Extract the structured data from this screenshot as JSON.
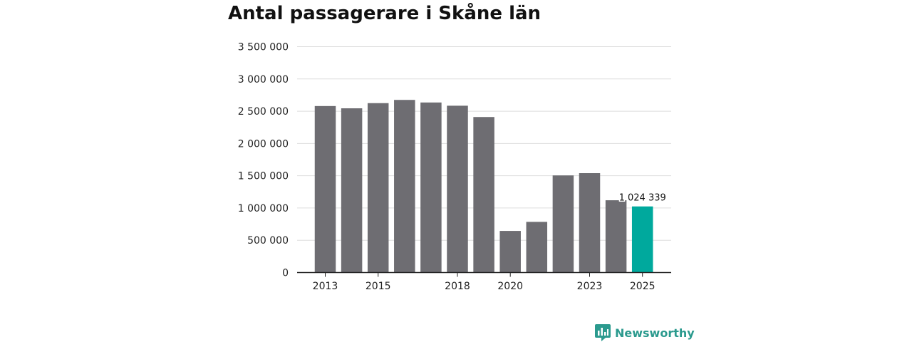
{
  "chart_data": {
    "type": "bar",
    "title": "Antal passagerare i Skåne län",
    "categories": [
      "2013",
      "2014",
      "2015",
      "2016",
      "2017",
      "2018",
      "2019",
      "2020",
      "2021",
      "2022",
      "2023",
      "2024",
      "2025"
    ],
    "values": [
      2580000,
      2545000,
      2625000,
      2675000,
      2635000,
      2585000,
      2410000,
      645000,
      785000,
      1505000,
      1540000,
      1120000,
      1024339
    ],
    "x_tick_labels": [
      "2013",
      "",
      "2015",
      "",
      "",
      "2018",
      "",
      "2020",
      "",
      "",
      "2023",
      "",
      "2025"
    ],
    "y_ticks": [
      0,
      500000,
      1000000,
      1500000,
      2000000,
      2500000,
      3000000,
      3500000
    ],
    "y_tick_labels": [
      "0",
      "500 000",
      "1 000 000",
      "1 500 000",
      "2 000 000",
      "2 500 000",
      "3 000 000",
      "3 500 000"
    ],
    "ylim": [
      0,
      3500000
    ],
    "xlabel": "",
    "ylabel": "",
    "grid": true,
    "highlight_index": 12,
    "highlight_label": "1 024 339",
    "colors": {
      "bar": "#6e6d72",
      "highlight": "#00a99d",
      "grid": "#dddddd",
      "axis": "#222222"
    }
  },
  "brand": {
    "name": "Newsworthy",
    "icon": "bar-chart-bubble-icon",
    "color": "#2b9a8e"
  }
}
